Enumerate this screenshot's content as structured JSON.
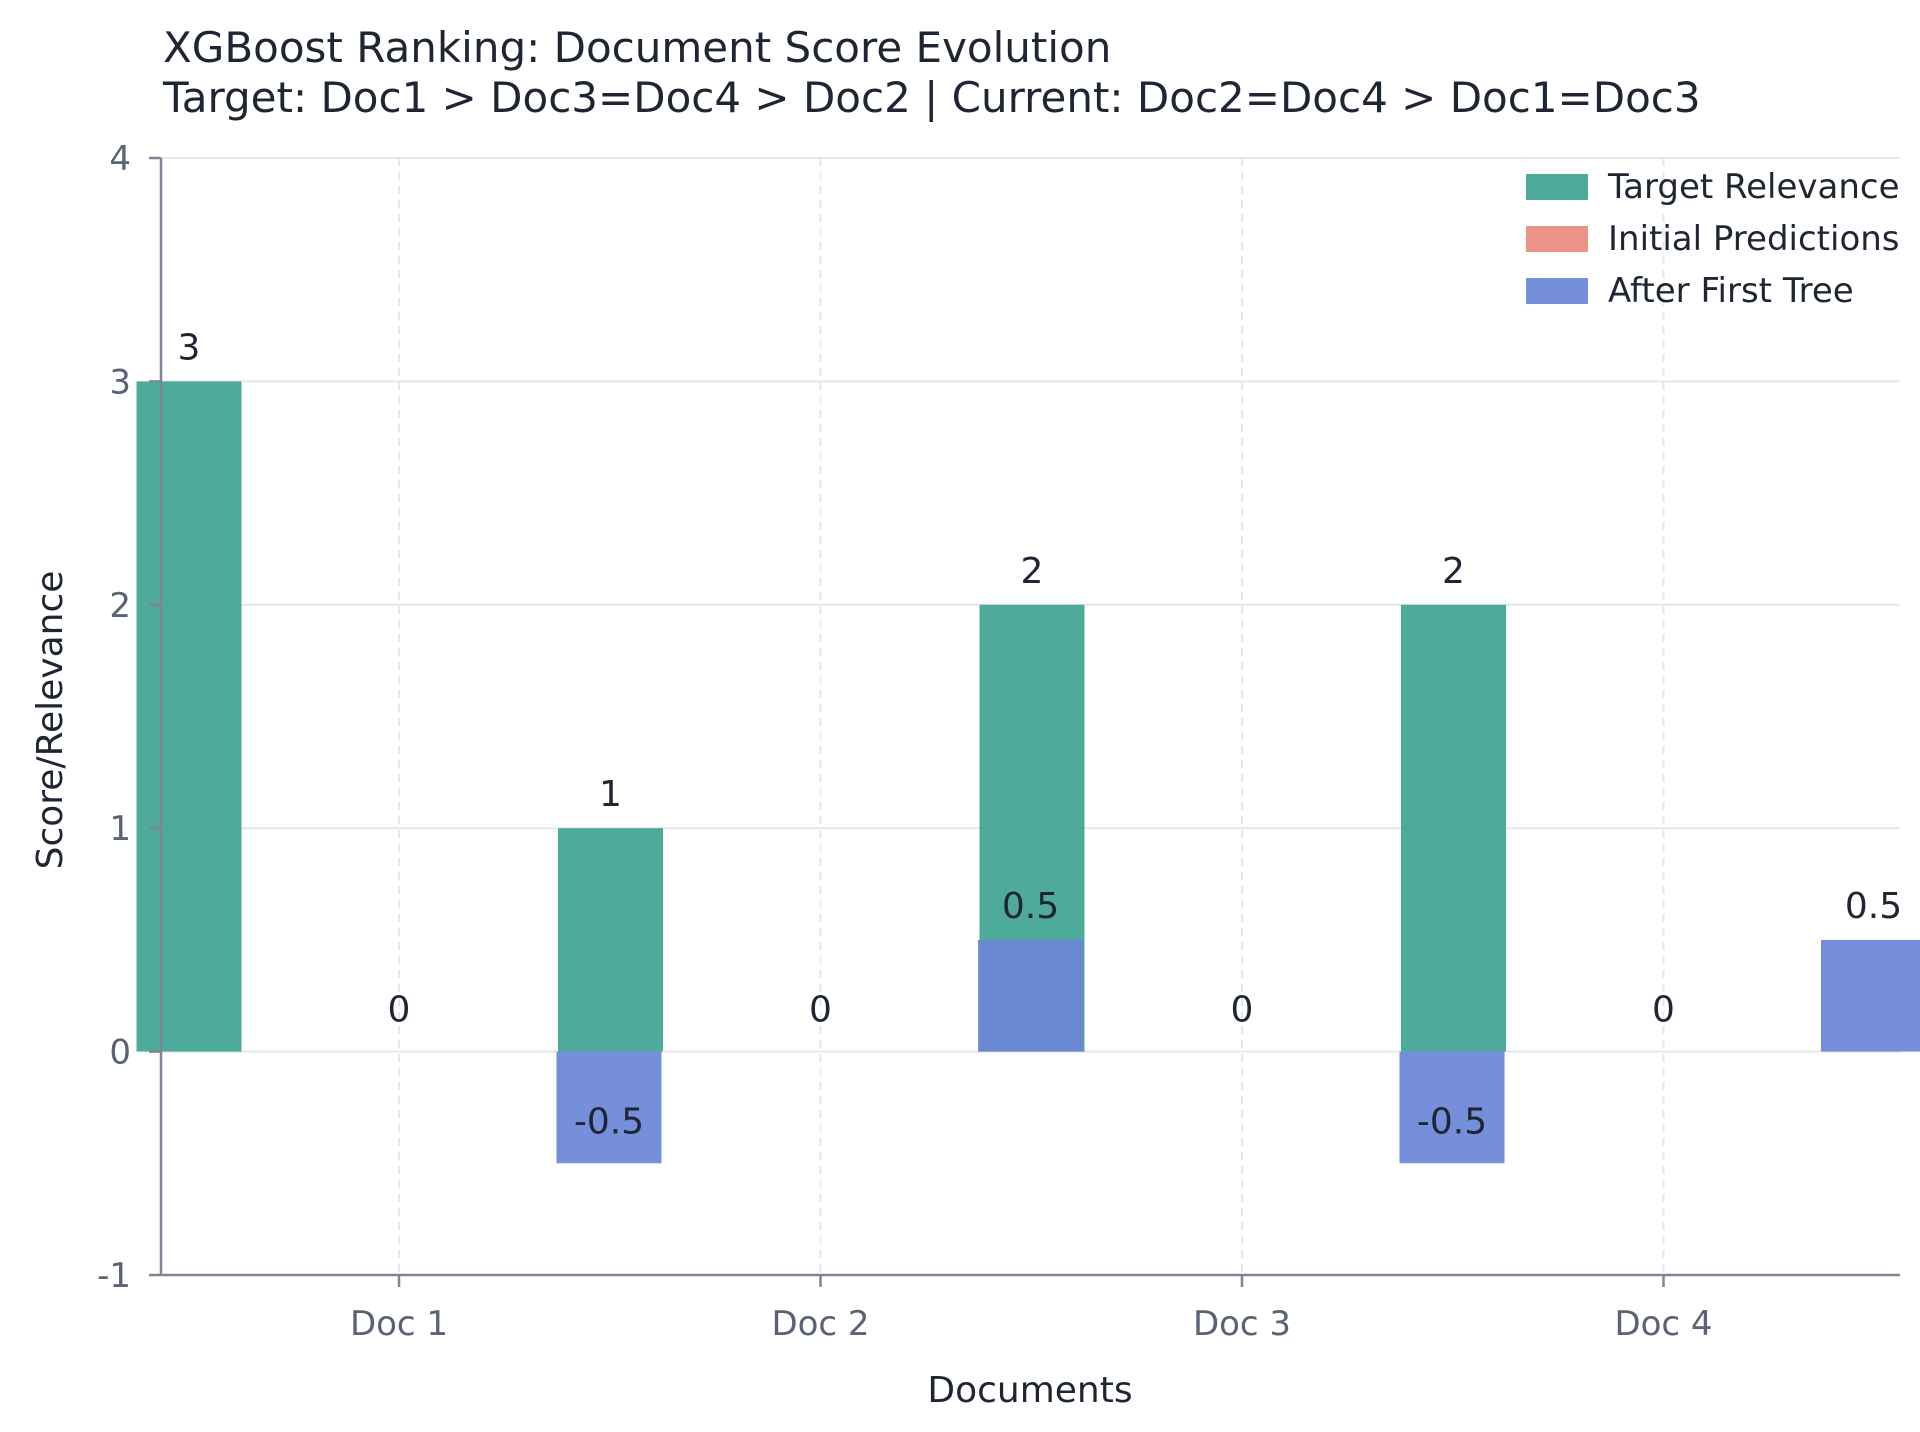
{
  "chart_data": {
    "type": "bar",
    "title": "XGBoost Ranking: Document Score Evolution",
    "subtitle": "Target: Doc1 > Doc3=Doc4 > Doc2 | Current: Doc2=Doc4 > Doc1=Doc3",
    "xlabel": "Documents",
    "ylabel": "Score/Relevance",
    "categories": [
      "Doc 1",
      "Doc 2",
      "Doc 3",
      "Doc 4"
    ],
    "ylim": [
      -1,
      4
    ],
    "yticks": [
      -1,
      0,
      1,
      2,
      3,
      4
    ],
    "grid": true,
    "legend_position": "top-right",
    "series": [
      {
        "name": "Target Relevance",
        "values": [
          3,
          1,
          2,
          2
        ],
        "labels": [
          "3",
          "1",
          "2",
          "2"
        ],
        "color": "#3fa392"
      },
      {
        "name": "Initial Predictions",
        "values": [
          0,
          0,
          0,
          0
        ],
        "labels": [
          "0",
          "0",
          "0",
          "0"
        ],
        "color": "#ea8a7e"
      },
      {
        "name": "After First Tree",
        "values": [
          -0.5,
          0.5,
          -0.5,
          0.5
        ],
        "labels": [
          "-0.5",
          "0.5",
          "-0.5",
          "0.5"
        ],
        "color": "#6a85d7"
      }
    ]
  }
}
